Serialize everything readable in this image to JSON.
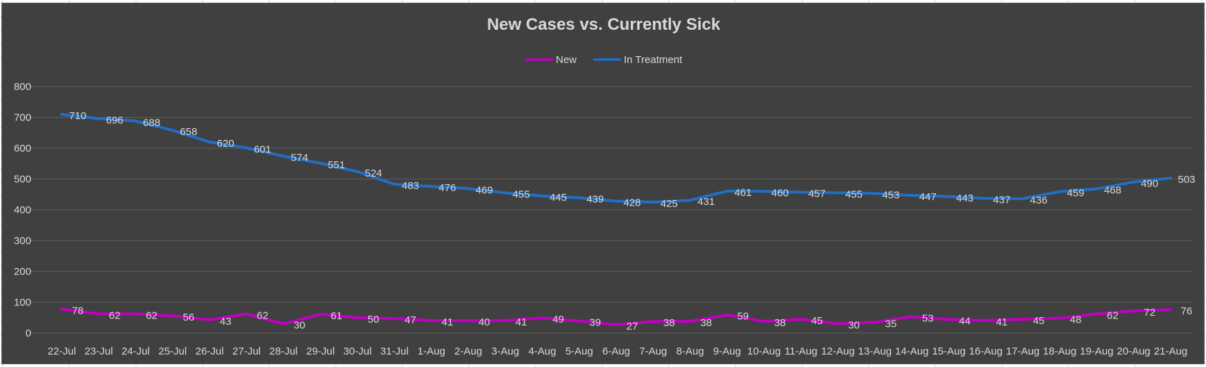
{
  "chart_data": {
    "type": "line",
    "title": "New Cases vs. Currently Sick",
    "xlabel": "",
    "ylabel": "",
    "ylim": [
      0,
      800
    ],
    "yticks": [
      0,
      100,
      200,
      300,
      400,
      500,
      600,
      700,
      800
    ],
    "grid": true,
    "legend_position": "top-center",
    "background": "#404040",
    "categories": [
      "22-Jul",
      "23-Jul",
      "24-Jul",
      "25-Jul",
      "26-Jul",
      "27-Jul",
      "28-Jul",
      "29-Jul",
      "30-Jul",
      "31-Jul",
      "1-Aug",
      "2-Aug",
      "3-Aug",
      "4-Aug",
      "5-Aug",
      "6-Aug",
      "7-Aug",
      "8-Aug",
      "9-Aug",
      "10-Aug",
      "11-Aug",
      "12-Aug",
      "13-Aug",
      "14-Aug",
      "15-Aug",
      "16-Aug",
      "17-Aug",
      "18-Aug",
      "19-Aug",
      "20-Aug",
      "21-Aug"
    ],
    "series": [
      {
        "name": "New",
        "color": "#c000c0",
        "values": [
          78,
          62,
          62,
          56,
          43,
          62,
          30,
          61,
          50,
          47,
          41,
          40,
          41,
          49,
          39,
          27,
          38,
          38,
          59,
          38,
          45,
          30,
          35,
          53,
          44,
          41,
          45,
          48,
          62,
          72,
          76
        ]
      },
      {
        "name": "In Treatment",
        "color": "#1f6fc5",
        "values": [
          710,
          696,
          688,
          658,
          620,
          601,
          574,
          551,
          524,
          483,
          476,
          469,
          455,
          445,
          439,
          428,
          425,
          431,
          461,
          460,
          457,
          455,
          453,
          447,
          443,
          437,
          436,
          459,
          468,
          490,
          503
        ]
      }
    ]
  }
}
